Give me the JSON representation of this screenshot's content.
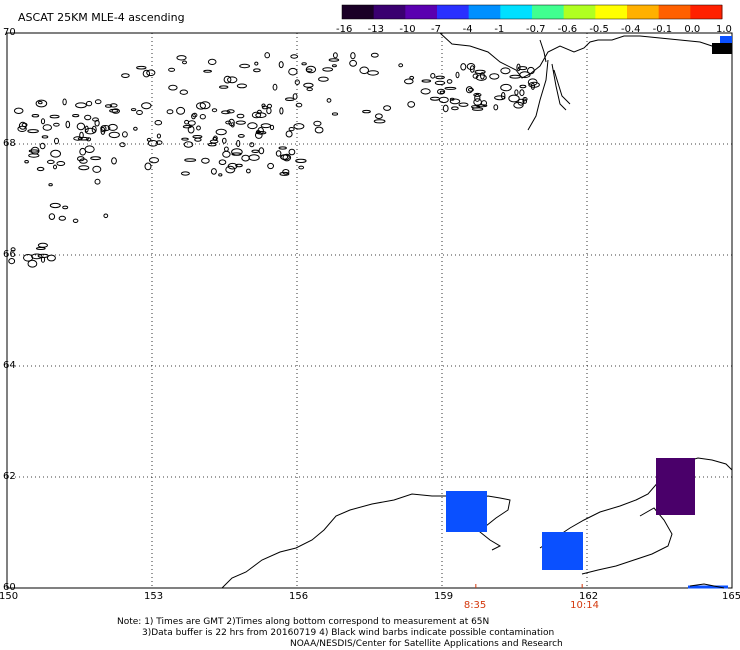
{
  "title": "ASCAT 25KM MLE-4 ascending",
  "colorbar": {
    "labels": [
      "-16",
      "-13",
      "-10",
      "-7",
      "-4",
      "-1",
      "-0.7",
      "-0.6",
      "-0.5",
      "-0.4",
      "-0.1",
      "0.0",
      "1.0"
    ],
    "colors": [
      "#1a0026",
      "#3a0070",
      "#5a00b0",
      "#2a30ff",
      "#0090ff",
      "#00e0ff",
      "#40ff90",
      "#b0ff20",
      "#ffff00",
      "#ffb000",
      "#ff6000",
      "#ff2000"
    ]
  },
  "map": {
    "lon_range": [
      150,
      165
    ],
    "lat_range": [
      60,
      70
    ],
    "lon_ticks": [
      "150",
      "153",
      "156",
      "159",
      "162",
      "165"
    ],
    "lat_ticks": [
      "70",
      "68",
      "66",
      "64",
      "62",
      "60"
    ],
    "pass_times": [
      {
        "label": "8:35",
        "lon": 159.7
      },
      {
        "label": "10:14",
        "lon": 161.9
      }
    ]
  },
  "notes": {
    "line1": "Note: 1) Times are GMT 2)Times along bottom correspond to measurement at 65N",
    "line2": "3)Data buffer is 22 hrs from 20160719 4) Black wind barbs indicate possible contamination",
    "line3": "NOAA/NESDIS/Center for Satellite Applications and Research"
  }
}
